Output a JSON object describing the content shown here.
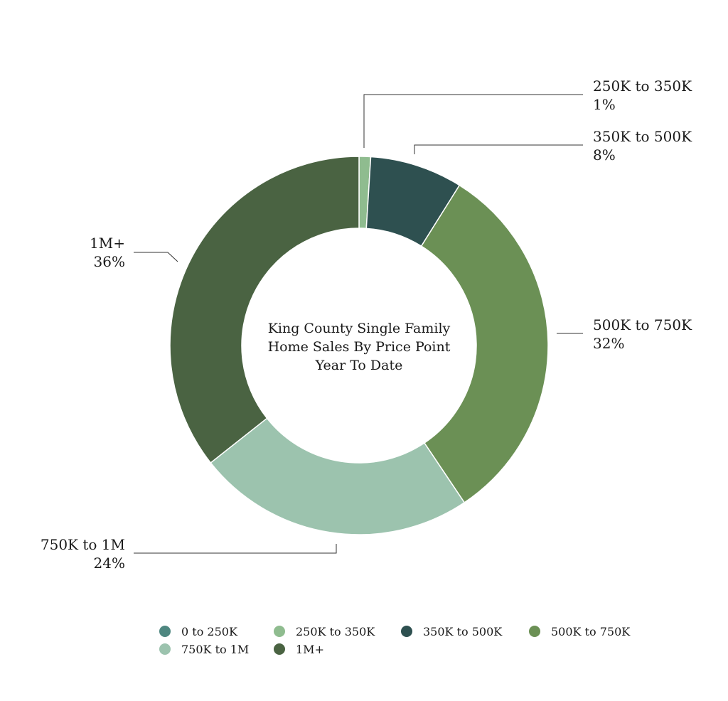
{
  "chart_data": {
    "type": "pie",
    "variant": "donut",
    "title_lines": [
      "King County Single Family",
      "Home Sales By Price Point",
      "Year To Date"
    ],
    "categories": [
      "0 to 250K",
      "250K to 350K",
      "350K to 500K",
      "500K to 750K",
      "750K to 1M",
      "1M+"
    ],
    "values": [
      0,
      1,
      8,
      32,
      24,
      36
    ],
    "value_labels": [
      "",
      "1%",
      "8%",
      "32%",
      "24%",
      "36%"
    ],
    "colors": [
      "#4e8780",
      "#8fbc8f",
      "#2e5050",
      "#6b9055",
      "#9cc3ae",
      "#4a6342"
    ],
    "legend_position": "bottom"
  }
}
